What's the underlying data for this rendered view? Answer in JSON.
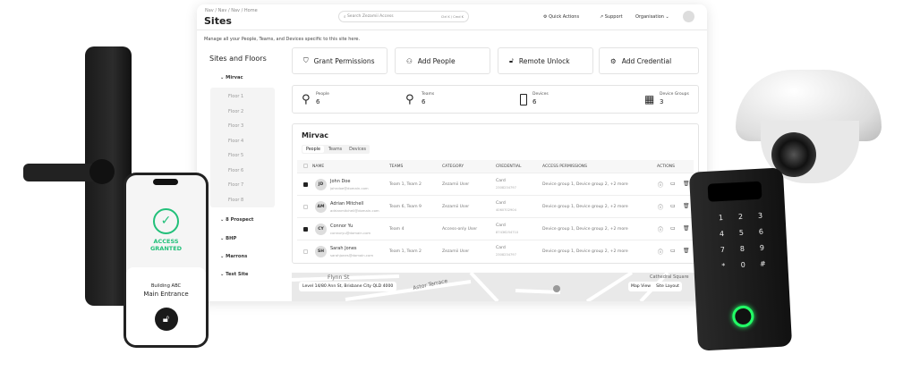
{
  "header": {
    "breadcrumb": "Nav / Nav / Nav / Home",
    "title": "Sites",
    "search_placeholder": "Search Zezamii Access",
    "search_shortcut": "Ctrl K / Cmd K",
    "quick_actions": "Quick Actions",
    "support": "Support",
    "organisation": "Organisation"
  },
  "subtitle": "Manage all your People, Teams, and Devices specific to this site here.",
  "sidebar": {
    "title": "Sites and Floors",
    "sites": [
      {
        "label": "Mirvac",
        "floors": [
          "Floor 1",
          "Floor 2",
          "Floor 3",
          "Floor 4",
          "Floor 5",
          "Floor 6",
          "Floor 7",
          "Floor 8"
        ]
      },
      {
        "label": "8 Prospect"
      },
      {
        "label": "BHP"
      },
      {
        "label": "Marrons"
      },
      {
        "label": "Test Site"
      }
    ]
  },
  "actions": [
    {
      "label": "Grant Permissions",
      "icon": "shield-icon"
    },
    {
      "label": "Add People",
      "icon": "people-icon"
    },
    {
      "label": "Remote Unlock",
      "icon": "lock-icon"
    },
    {
      "label": "Add Credential",
      "icon": "credential-icon"
    }
  ],
  "stats": [
    {
      "label": "People",
      "value": "6"
    },
    {
      "label": "Teams",
      "value": "6"
    },
    {
      "label": "Devices",
      "value": "6"
    },
    {
      "label": "Device Groups",
      "value": "3"
    }
  ],
  "table": {
    "title": "Mirvac",
    "tabs": [
      "People",
      "Teams",
      "Devices"
    ],
    "active_tab": "People",
    "columns": [
      "NAME",
      "TEAMS",
      "CATEGORY",
      "CREDENTIAL",
      "ACCESS PERMISSIONS",
      "ACTIONS"
    ],
    "rows": [
      {
        "initials": "JD",
        "name": "John Doe",
        "email": "johndoe@domain.com",
        "teams": "Team 1, Team 2",
        "category": "Zezamii User",
        "cred_type": "Card",
        "cred_no": "2308234797",
        "access": "Device group 1, Device group 2,  +2 more",
        "checked": true
      },
      {
        "initials": "AM",
        "name": "Adrian Mitchell",
        "email": "adrianmitchell@domain.com",
        "teams": "Team 6, Team 9",
        "category": "Zezamii User",
        "cred_type": "Card",
        "cred_no": "4060702904",
        "access": "Device group 1, Device group 2,  +2 more",
        "checked": false
      },
      {
        "initials": "CY",
        "name": "Connor Yu",
        "email": "connoryu@domain.com",
        "teams": "Team 4",
        "category": "Access-only User",
        "cred_type": "Card",
        "cred_no": "87436254710",
        "access": "Device group 1, Device group 2,  +2 more",
        "checked": true
      },
      {
        "initials": "SH",
        "name": "Sarah Jones",
        "email": "sarahjones@domain.com",
        "teams": "Team 1, Team 2",
        "category": "Zezamii User",
        "cred_type": "Card",
        "cred_no": "2308234797",
        "access": "Device group 1, Device group 2,  +2 more",
        "checked": false
      }
    ]
  },
  "map": {
    "address": "Level 14/80 Ann St, Brisbane City QLD 4000",
    "map_view": "Map View",
    "site_layout": "Site Layout",
    "streets": [
      "Flynn St",
      "Astor Terrace",
      "Cathedral Square"
    ]
  },
  "phone": {
    "status": "ACCESS GRANTED",
    "building": "Building ABC",
    "entrance": "Main Entrance",
    "accent": "#22c07a"
  },
  "keypad": {
    "keys": [
      "1",
      "2",
      "3",
      "4",
      "5",
      "6",
      "7",
      "8",
      "9",
      "*",
      "0",
      "#"
    ]
  }
}
